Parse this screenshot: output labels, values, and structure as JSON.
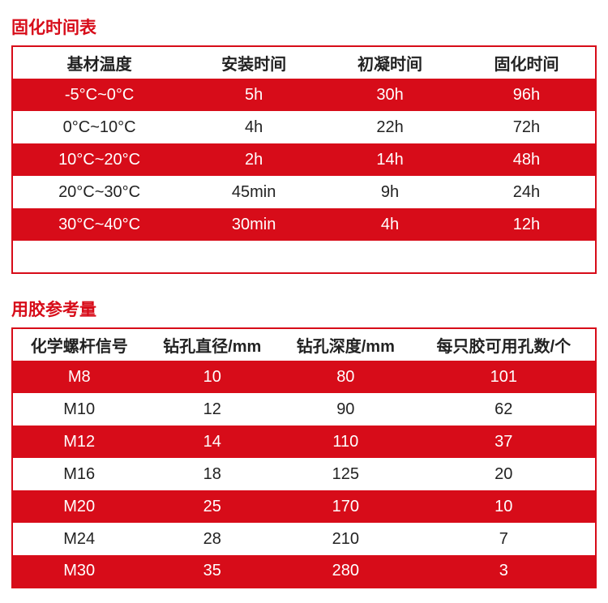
{
  "colors": {
    "accent": "#d70c19",
    "white": "#ffffff",
    "text": "#222222"
  },
  "section1": {
    "title": "固化时间表",
    "columns": [
      "基材温度",
      "安装时间",
      "初凝时间",
      "固化时间"
    ],
    "rows": [
      [
        "-5°C~0°C",
        "5h",
        "30h",
        "96h"
      ],
      [
        "0°C~10°C",
        "4h",
        "22h",
        "72h"
      ],
      [
        "10°C~20°C",
        "2h",
        "14h",
        "48h"
      ],
      [
        "20°C~30°C",
        "45min",
        "9h",
        "24h"
      ],
      [
        "30°C~40°C",
        "30min",
        "4h",
        "12h"
      ]
    ],
    "row_stripe_start": "red",
    "has_trailing_spacer": true
  },
  "section2": {
    "title": "用胶参考量",
    "columns": [
      "化学螺杆信号",
      "钻孔直径/mm",
      "钻孔深度/mm",
      "每只胶可用孔数/个"
    ],
    "rows": [
      [
        "M8",
        "10",
        "80",
        "101"
      ],
      [
        "M10",
        "12",
        "90",
        "62"
      ],
      [
        "M12",
        "14",
        "110",
        "37"
      ],
      [
        "M16",
        "18",
        "125",
        "20"
      ],
      [
        "M20",
        "25",
        "170",
        "10"
      ],
      [
        "M24",
        "28",
        "210",
        "7"
      ],
      [
        "M30",
        "35",
        "280",
        "3"
      ]
    ],
    "row_stripe_start": "red",
    "has_trailing_spacer": false
  }
}
